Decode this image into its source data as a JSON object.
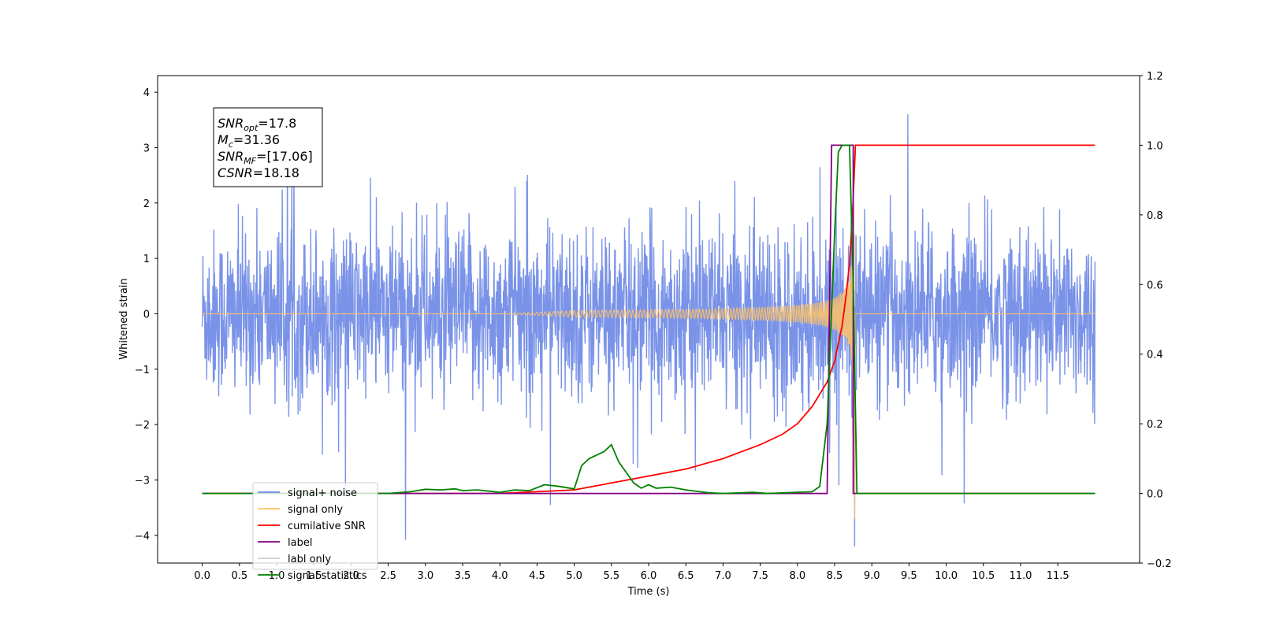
{
  "chart_data": {
    "type": "line",
    "xlabel": "Time (s)",
    "ylabel": "Whitened strain",
    "xlim": [
      -0.6,
      12.6
    ],
    "ylim": [
      -4.5,
      4.3
    ],
    "y2lim": [
      -0.2,
      1.2
    ],
    "x_ticks": [
      0.0,
      0.5,
      1.0,
      1.5,
      2.0,
      2.5,
      3.0,
      3.5,
      4.0,
      4.5,
      5.0,
      5.5,
      6.0,
      6.5,
      7.0,
      7.5,
      8.0,
      8.5,
      9.0,
      9.5,
      10.0,
      10.5,
      11.0,
      11.5
    ],
    "x_tick_labels": [
      "0.0",
      "0.5",
      "1.0",
      "1.5",
      "2.0",
      "2.5",
      "3.0",
      "3.5",
      "4.0",
      "4.5",
      "5.0",
      "5.5",
      "6.0",
      "6.5",
      "7.0",
      "7.5",
      "8.0",
      "8.5",
      "9.0",
      "9.5",
      "10.0",
      "10.5",
      "11.0",
      "11.5"
    ],
    "y_ticks": [
      4,
      3,
      2,
      1,
      0,
      -1,
      -2,
      -3,
      -4
    ],
    "y_tick_labels": [
      "4",
      "3",
      "2",
      "1",
      "0",
      "−1",
      "−2",
      "−3",
      "−4"
    ],
    "y2_ticks": [
      1.2,
      1.0,
      0.8,
      0.6,
      0.4,
      0.2,
      0.0,
      -0.2
    ],
    "y2_tick_labels": [
      "1.2",
      "1.0",
      "0.8",
      "0.6",
      "0.4",
      "0.2",
      "0.0",
      "−0.2"
    ],
    "annotation": [
      {
        "sym": "SNR",
        "sub": "opt",
        "val": "=17.8"
      },
      {
        "sym": "M",
        "sub": "c",
        "val": "=31.36"
      },
      {
        "sym": "SNR",
        "sub": "MF",
        "val": "=[17.06]"
      },
      {
        "sym": "CSNR",
        "sub": "",
        "val": "=18.18"
      }
    ],
    "legend_position": "lower-left",
    "series": [
      {
        "name": "signal+ noise",
        "color": "#6b87e6",
        "axis": "left",
        "style": "noise",
        "x_range": [
          0,
          12
        ],
        "sigma": 0.75,
        "merger_time": 8.77
      },
      {
        "name": "signal only",
        "color": "#ffc266",
        "axis": "left",
        "style": "chirp",
        "x_range": [
          0,
          12
        ],
        "merger_time": 8.77,
        "peak": 3.9
      },
      {
        "name": "cumilative SNR",
        "color": "#ff0000",
        "axis": "right",
        "x": [
          0,
          4.0,
          5.0,
          5.5,
          6.0,
          6.5,
          7.0,
          7.5,
          7.8,
          8.0,
          8.2,
          8.4,
          8.5,
          8.6,
          8.65,
          8.7,
          8.74,
          8.77,
          8.78,
          12.0
        ],
        "y": [
          0,
          0.0,
          0.01,
          0.03,
          0.05,
          0.07,
          0.1,
          0.14,
          0.17,
          0.2,
          0.25,
          0.32,
          0.38,
          0.48,
          0.56,
          0.66,
          0.8,
          0.95,
          1.0,
          1.0
        ]
      },
      {
        "name": "label",
        "color": "#800080",
        "axis": "right",
        "x": [
          0,
          8.4,
          8.46,
          8.75,
          8.75,
          12.0
        ],
        "y": [
          0,
          0,
          1.0,
          1.0,
          0.0,
          0.0
        ]
      },
      {
        "name": "labl only",
        "color": "#cccccc",
        "axis": "right",
        "x": [],
        "y": []
      },
      {
        "name": "signal statistics",
        "color": "#008000",
        "axis": "right",
        "x": [
          0,
          2.5,
          2.8,
          3.0,
          3.2,
          3.4,
          3.5,
          3.7,
          4.0,
          4.2,
          4.4,
          4.6,
          4.8,
          5.0,
          5.1,
          5.2,
          5.3,
          5.4,
          5.5,
          5.6,
          5.7,
          5.8,
          5.9,
          6.0,
          6.1,
          6.3,
          6.5,
          6.8,
          7.0,
          7.4,
          7.6,
          8.2,
          8.3,
          8.4,
          8.5,
          8.55,
          8.6,
          8.7,
          8.75,
          8.8,
          12.0
        ],
        "y": [
          0,
          0.0,
          0.005,
          0.012,
          0.01,
          0.013,
          0.008,
          0.01,
          0.003,
          0.01,
          0.008,
          0.025,
          0.02,
          0.013,
          0.08,
          0.1,
          0.11,
          0.12,
          0.14,
          0.09,
          0.06,
          0.03,
          0.015,
          0.025,
          0.015,
          0.018,
          0.01,
          0.002,
          0.0,
          0.003,
          0.0,
          0.005,
          0.02,
          0.2,
          0.75,
          0.98,
          1.0,
          1.0,
          0.6,
          0.0,
          0.0
        ]
      }
    ]
  }
}
